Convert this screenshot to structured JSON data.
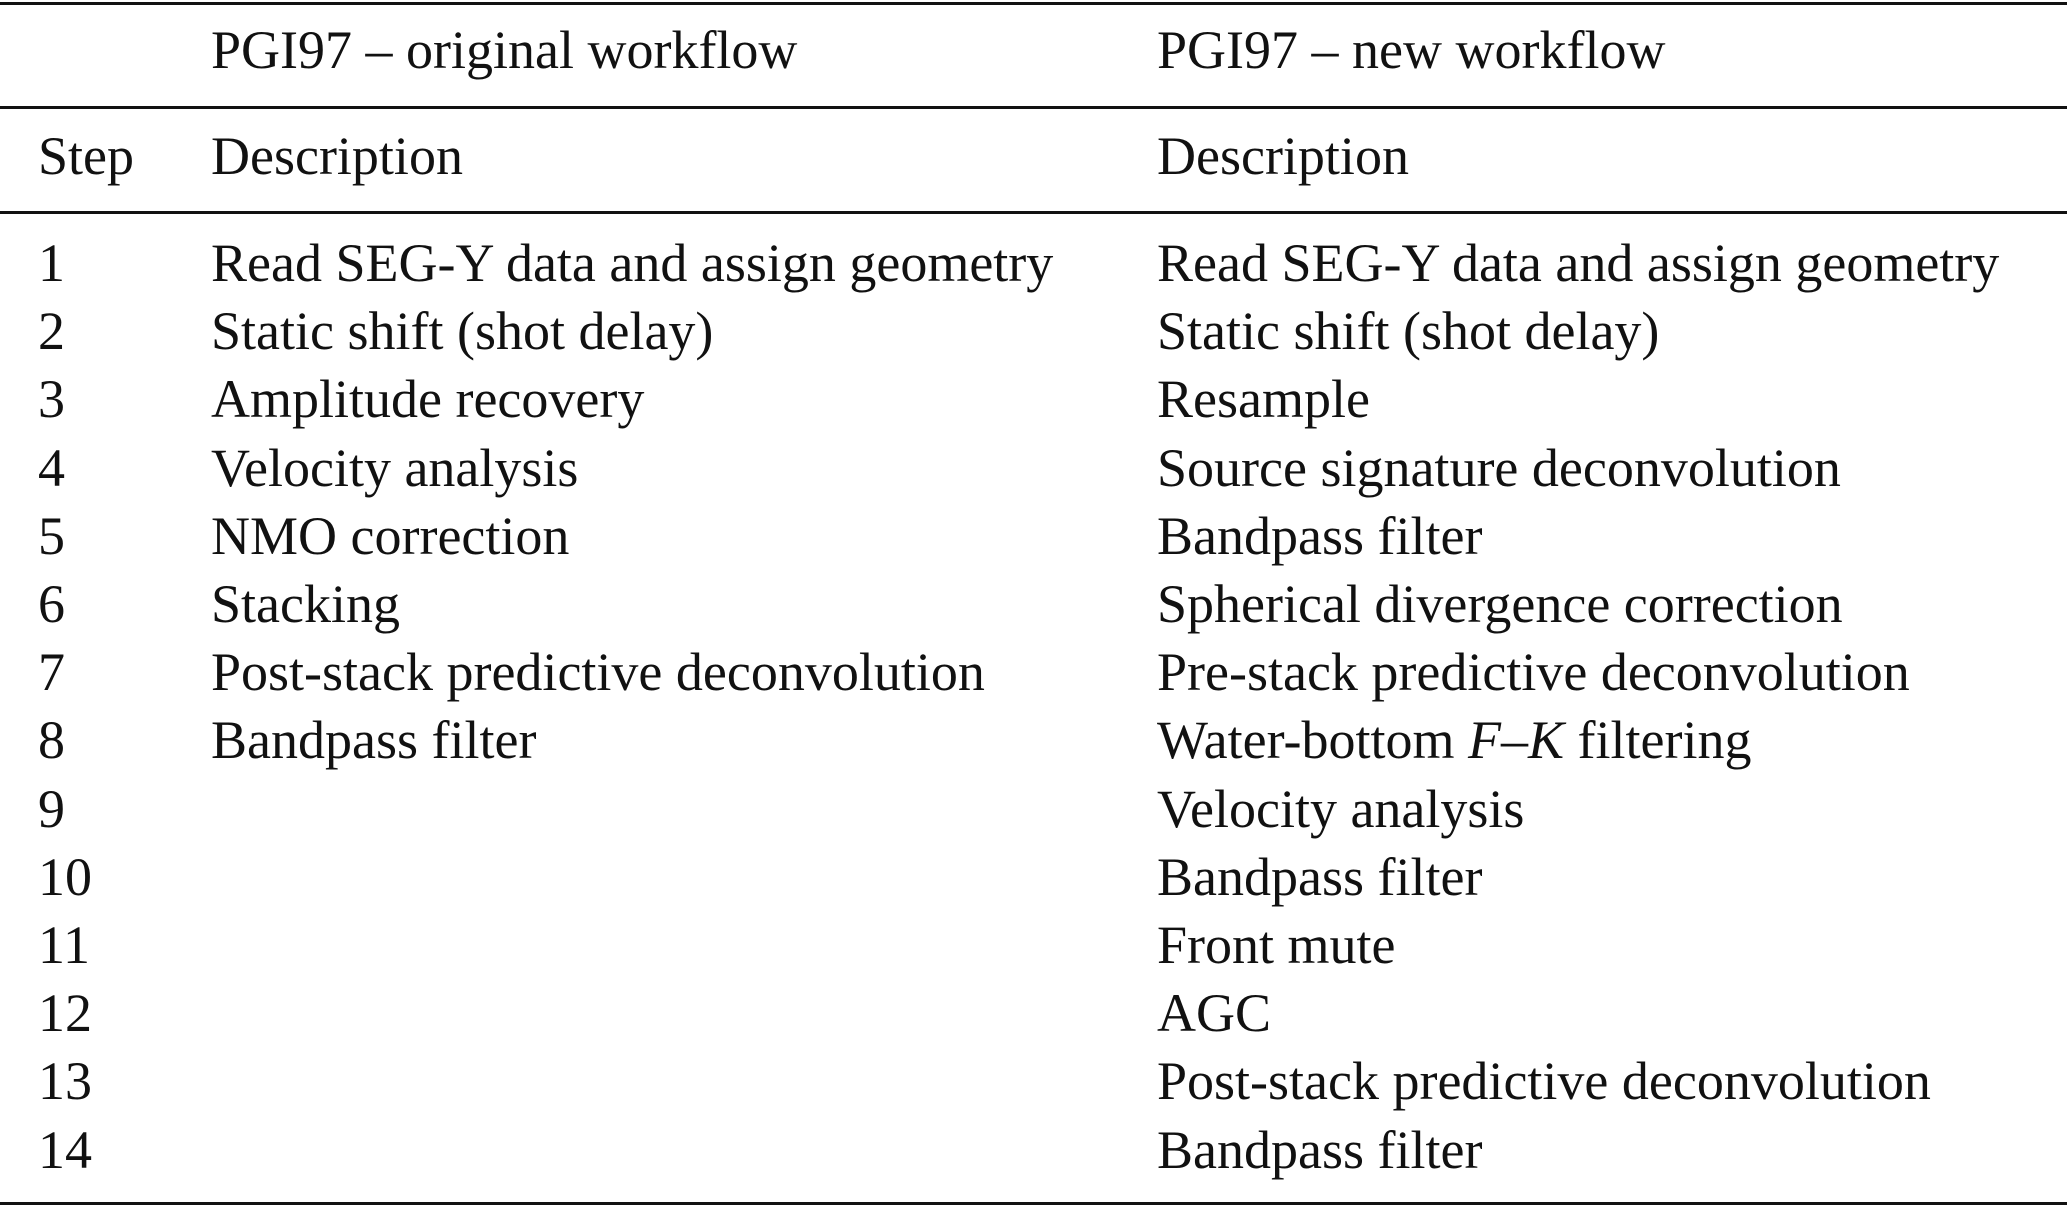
{
  "table": {
    "group_headers": [
      "",
      "PGI97 – original workflow",
      "PGI97 – new workflow"
    ],
    "column_headers": [
      "Step",
      "Description",
      "Description"
    ],
    "rows": [
      [
        "1",
        "Read SEG-Y data and assign geometry",
        "Read SEG-Y data and assign geometry"
      ],
      [
        "2",
        "Static shift (shot delay)",
        "Static shift (shot delay)"
      ],
      [
        "3",
        "Amplitude recovery",
        "Resample"
      ],
      [
        "4",
        "Velocity analysis",
        "Source signature deconvolution"
      ],
      [
        "5",
        "NMO correction",
        "Bandpass filter"
      ],
      [
        "6",
        "Stacking",
        "Spherical divergence correction"
      ],
      [
        "7",
        "Post-stack predictive deconvolution",
        "Pre-stack predictive deconvolution"
      ],
      [
        "8",
        "Bandpass filter",
        "Water-bottom F–K filtering"
      ],
      [
        "9",
        "",
        "Velocity analysis"
      ],
      [
        "10",
        "",
        "Bandpass filter"
      ],
      [
        "11",
        "",
        "Front mute"
      ],
      [
        "12",
        "",
        "AGC"
      ],
      [
        "13",
        "",
        "Post-stack predictive deconvolution"
      ],
      [
        "14",
        "",
        "Bandpass filter"
      ]
    ]
  }
}
